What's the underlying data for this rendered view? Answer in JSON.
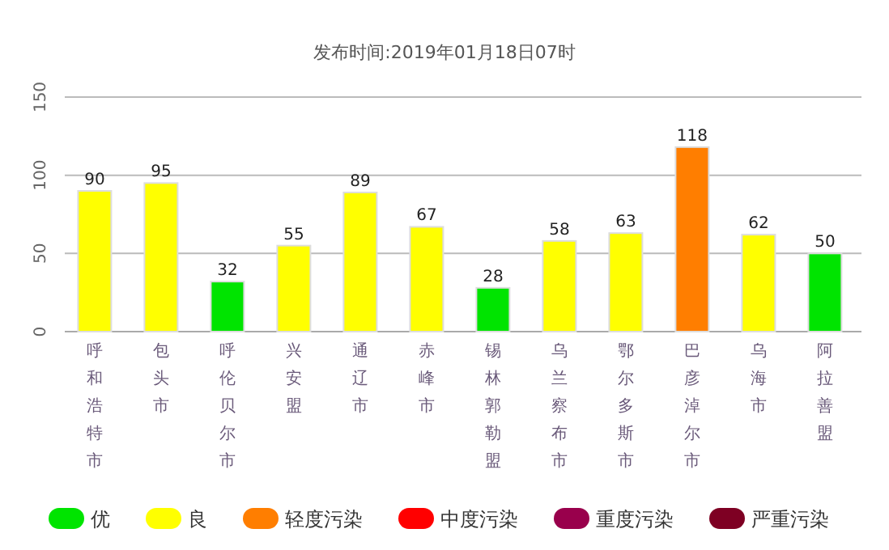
{
  "chart_data": {
    "type": "bar",
    "title": "发布时间:2019年01月18日07时",
    "categories": [
      "呼和浩特市",
      "包头市",
      "呼伦贝尔市",
      "兴安盟",
      "通辽市",
      "赤峰市",
      "锡林郭勒盟",
      "乌兰察布市",
      "鄂尔多斯市",
      "巴彦淖尔市",
      "乌海市",
      "阿拉善盟"
    ],
    "series": [
      {
        "name": "优",
        "color": "#00e400",
        "values": [
          null,
          null,
          32,
          null,
          null,
          null,
          28,
          null,
          null,
          null,
          null,
          50
        ]
      },
      {
        "name": "良",
        "color": "#ffff00",
        "values": [
          90,
          95,
          null,
          55,
          89,
          67,
          null,
          58,
          63,
          null,
          62,
          null
        ]
      },
      {
        "name": "轻度污染",
        "color": "#ff7e00",
        "values": [
          null,
          null,
          null,
          null,
          null,
          null,
          null,
          null,
          null,
          118,
          null,
          null
        ]
      },
      {
        "name": "中度污染",
        "color": "#ff0000",
        "values": [
          null,
          null,
          null,
          null,
          null,
          null,
          null,
          null,
          null,
          null,
          null,
          null
        ]
      },
      {
        "name": "重度污染",
        "color": "#99004c",
        "values": [
          null,
          null,
          null,
          null,
          null,
          null,
          null,
          null,
          null,
          null,
          null,
          null
        ]
      },
      {
        "name": "严重污染",
        "color": "#7e0023",
        "values": [
          null,
          null,
          null,
          null,
          null,
          null,
          null,
          null,
          null,
          null,
          null,
          null
        ]
      }
    ],
    "ylim": [
      0,
      150
    ],
    "yticks": [
      0,
      50,
      100,
      150
    ],
    "grid": "y",
    "data_labels": true,
    "legend": "bottom"
  }
}
